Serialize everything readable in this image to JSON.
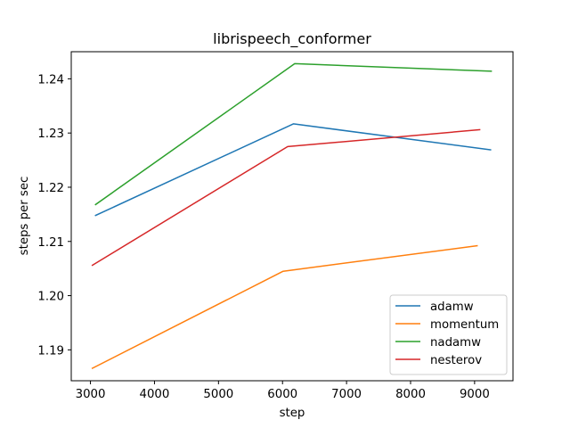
{
  "chart_data": {
    "type": "line",
    "title": "librispeech_conformer",
    "xlabel": "step",
    "ylabel": "steps per sec",
    "xlim": [
      2700,
      9600
    ],
    "ylim": [
      1.1843,
      1.245
    ],
    "xticks": [
      3000,
      4000,
      5000,
      6000,
      7000,
      8000,
      9000
    ],
    "yticks": [
      1.19,
      1.2,
      1.21,
      1.22,
      1.23,
      1.24
    ],
    "xtick_labels": [
      "3000",
      "4000",
      "5000",
      "6000",
      "7000",
      "8000",
      "9000"
    ],
    "ytick_labels": [
      "1.19",
      "1.20",
      "1.21",
      "1.22",
      "1.23",
      "1.24"
    ],
    "grid": false,
    "legend_position": "lower-right",
    "series": [
      {
        "name": "adamw",
        "color": "#1f77b4",
        "x": [
          3080,
          6170,
          9250
        ],
        "y": [
          1.2148,
          1.2317,
          1.2269
        ]
      },
      {
        "name": "momentum",
        "color": "#ff7f0e",
        "x": [
          3030,
          6010,
          9040
        ],
        "y": [
          1.1866,
          1.2045,
          1.2092
        ]
      },
      {
        "name": "nadamw",
        "color": "#2ca02c",
        "x": [
          3080,
          6190,
          9260
        ],
        "y": [
          1.2168,
          1.2428,
          1.2414
        ]
      },
      {
        "name": "nesterov",
        "color": "#d62728",
        "x": [
          3030,
          6080,
          9080
        ],
        "y": [
          1.2056,
          1.2275,
          1.2306
        ]
      }
    ]
  }
}
